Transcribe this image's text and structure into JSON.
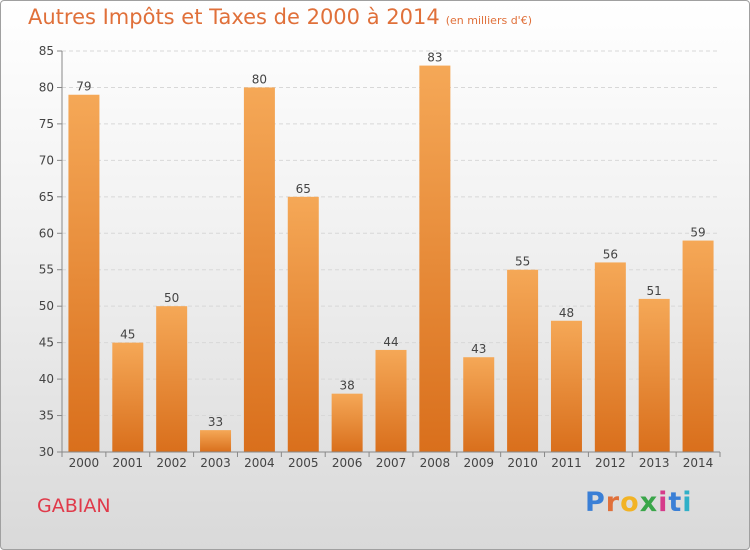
{
  "chart_data": {
    "type": "bar",
    "title": "Autres Impôts et Taxes de 2000 à 2014",
    "subtitle": "(en milliers d'€)",
    "categories": [
      "2000",
      "2001",
      "2002",
      "2003",
      "2004",
      "2005",
      "2006",
      "2007",
      "2008",
      "2009",
      "2010",
      "2011",
      "2012",
      "2013",
      "2014"
    ],
    "values": [
      79,
      45,
      50,
      33,
      80,
      65,
      38,
      44,
      83,
      43,
      55,
      48,
      56,
      51,
      59
    ],
    "ylim": [
      30,
      85
    ],
    "yticks": [
      30,
      35,
      40,
      45,
      50,
      55,
      60,
      65,
      70,
      75,
      80,
      85
    ],
    "grid": true,
    "bar_color": "#f08a2c"
  },
  "place": "GABIAN",
  "logo": "Proxiti"
}
